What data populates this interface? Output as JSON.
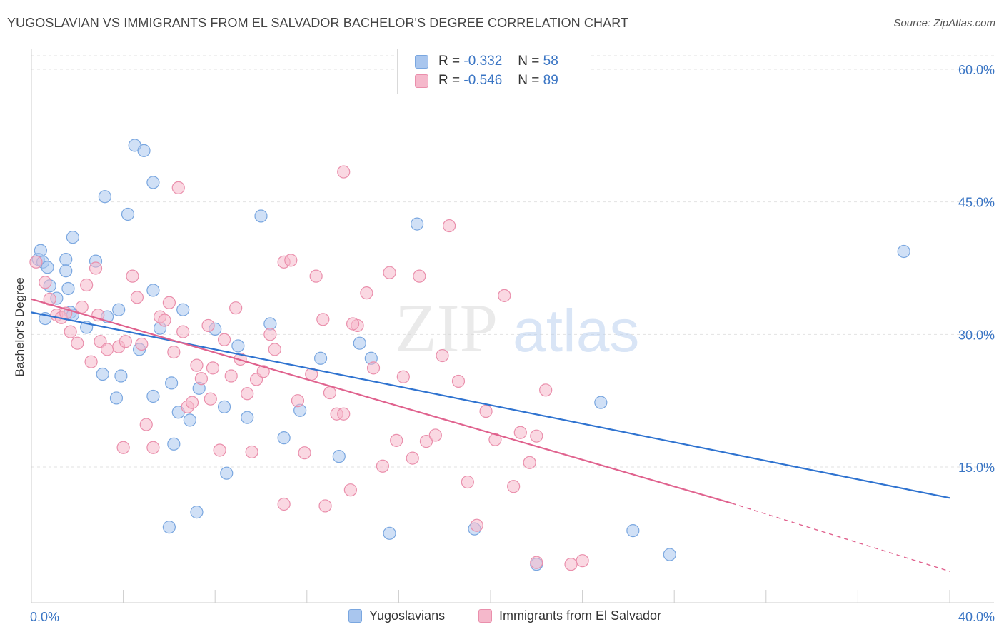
{
  "title": "YUGOSLAVIAN VS IMMIGRANTS FROM EL SALVADOR BACHELOR'S DEGREE CORRELATION CHART",
  "source": "Source: ZipAtlas.com",
  "watermark": {
    "zip": "ZIP",
    "atlas": "atlas"
  },
  "legend": {
    "rows": [
      {
        "r_label": "R =",
        "r_value": "-0.332",
        "n_label": "N =",
        "n_value": "58"
      },
      {
        "r_label": "R =",
        "r_value": "-0.546",
        "n_label": "N =",
        "n_value": "89"
      }
    ]
  },
  "colors": {
    "blue_fill": "#a9c6ee",
    "blue_stroke": "#7aa7e0",
    "blue_line": "#2f73d0",
    "pink_fill": "#f5b8cb",
    "pink_stroke": "#ea8fac",
    "pink_line": "#e0628e",
    "grid": "#e2e2e2",
    "tick_label": "#3a75c4"
  },
  "chart_data": {
    "type": "scatter",
    "xlabel": "",
    "ylabel": "Bachelor's Degree",
    "xlim": [
      0,
      40
    ],
    "ylim": [
      2,
      62
    ],
    "x_tick_labels": [
      {
        "value": 0,
        "label": "0.0%"
      },
      {
        "value": 40,
        "label": "40.0%"
      }
    ],
    "y_tick_labels": [
      {
        "value": 15,
        "label": "15.0%"
      },
      {
        "value": 30,
        "label": "30.0%"
      },
      {
        "value": 45,
        "label": "45.0%"
      },
      {
        "value": 60,
        "label": "60.0%"
      }
    ],
    "grid": true,
    "legend_position": "top-center",
    "series": [
      {
        "name": "Yugoslavians",
        "color": "#a9c6ee",
        "trend": {
          "x": [
            0,
            40
          ],
          "y": [
            32.5,
            11.5
          ]
        },
        "points": [
          [
            0.3,
            38.5
          ],
          [
            0.4,
            39.5
          ],
          [
            0.5,
            38.2
          ],
          [
            0.7,
            37.6
          ],
          [
            0.8,
            35.5
          ],
          [
            0.6,
            31.8
          ],
          [
            1.1,
            34.1
          ],
          [
            1.5,
            38.5
          ],
          [
            1.5,
            37.2
          ],
          [
            1.6,
            35.2
          ],
          [
            1.7,
            32.5
          ],
          [
            1.8,
            32.2
          ],
          [
            2.8,
            38.3
          ],
          [
            3.2,
            45.6
          ],
          [
            3.3,
            32.0
          ],
          [
            3.8,
            32.8
          ],
          [
            4.2,
            43.6
          ],
          [
            4.5,
            51.4
          ],
          [
            4.9,
            50.8
          ],
          [
            5.3,
            47.2
          ],
          [
            5.3,
            35.0
          ],
          [
            5.6,
            30.7
          ],
          [
            4.7,
            28.3
          ],
          [
            2.4,
            30.8
          ],
          [
            3.1,
            25.5
          ],
          [
            3.9,
            25.3
          ],
          [
            3.7,
            22.8
          ],
          [
            5.3,
            23.0
          ],
          [
            6.1,
            24.5
          ],
          [
            6.6,
            32.8
          ],
          [
            6.4,
            21.2
          ],
          [
            6.9,
            20.3
          ],
          [
            7.3,
            23.9
          ],
          [
            8.0,
            30.6
          ],
          [
            8.4,
            21.8
          ],
          [
            9.0,
            28.7
          ],
          [
            9.4,
            20.6
          ],
          [
            10.0,
            43.4
          ],
          [
            10.4,
            31.2
          ],
          [
            11.0,
            18.3
          ],
          [
            11.7,
            21.4
          ],
          [
            12.6,
            27.3
          ],
          [
            13.4,
            16.2
          ],
          [
            14.3,
            29.0
          ],
          [
            14.8,
            27.3
          ],
          [
            15.6,
            7.5
          ],
          [
            16.8,
            42.5
          ],
          [
            19.3,
            8.0
          ],
          [
            22.0,
            4.0
          ],
          [
            24.8,
            22.3
          ],
          [
            26.2,
            7.8
          ],
          [
            27.8,
            5.1
          ],
          [
            7.2,
            9.9
          ],
          [
            6.0,
            8.2
          ],
          [
            1.8,
            41.0
          ],
          [
            38.0,
            39.4
          ],
          [
            6.2,
            17.6
          ],
          [
            8.5,
            14.3
          ]
        ]
      },
      {
        "name": "Immigrants from El Salvador",
        "color": "#f5b8cb",
        "trend": {
          "x": [
            0,
            30.5
          ],
          "y": [
            34.0,
            10.9
          ]
        },
        "trend_dashed": {
          "x": [
            30.5,
            40
          ],
          "y": [
            10.9,
            3.2
          ]
        },
        "points": [
          [
            0.2,
            38.2
          ],
          [
            0.6,
            35.9
          ],
          [
            0.8,
            34.0
          ],
          [
            1.1,
            32.2
          ],
          [
            1.3,
            31.9
          ],
          [
            1.5,
            32.4
          ],
          [
            1.7,
            30.3
          ],
          [
            2.0,
            29.0
          ],
          [
            2.2,
            33.1
          ],
          [
            2.4,
            35.6
          ],
          [
            2.6,
            26.9
          ],
          [
            2.9,
            32.2
          ],
          [
            3.0,
            29.2
          ],
          [
            3.3,
            28.3
          ],
          [
            3.8,
            28.6
          ],
          [
            4.1,
            29.2
          ],
          [
            4.4,
            36.6
          ],
          [
            4.6,
            34.2
          ],
          [
            4.8,
            28.9
          ],
          [
            5.0,
            19.8
          ],
          [
            5.3,
            17.2
          ],
          [
            5.6,
            32.0
          ],
          [
            5.8,
            31.6
          ],
          [
            6.0,
            33.6
          ],
          [
            6.2,
            28.0
          ],
          [
            6.4,
            46.6
          ],
          [
            6.6,
            30.3
          ],
          [
            6.8,
            21.8
          ],
          [
            7.0,
            22.3
          ],
          [
            7.2,
            26.5
          ],
          [
            7.4,
            25.0
          ],
          [
            7.7,
            31.0
          ],
          [
            7.9,
            26.2
          ],
          [
            8.2,
            16.9
          ],
          [
            8.4,
            29.4
          ],
          [
            8.7,
            25.3
          ],
          [
            8.9,
            33.0
          ],
          [
            9.1,
            27.2
          ],
          [
            9.4,
            23.3
          ],
          [
            9.6,
            16.7
          ],
          [
            9.8,
            24.9
          ],
          [
            10.1,
            25.8
          ],
          [
            10.4,
            30.0
          ],
          [
            10.6,
            28.3
          ],
          [
            11.0,
            38.2
          ],
          [
            11.3,
            38.4
          ],
          [
            11.6,
            22.5
          ],
          [
            11.9,
            16.6
          ],
          [
            12.2,
            25.5
          ],
          [
            12.4,
            36.6
          ],
          [
            12.7,
            31.7
          ],
          [
            13.0,
            23.4
          ],
          [
            13.3,
            21.0
          ],
          [
            13.6,
            48.4
          ],
          [
            13.9,
            12.4
          ],
          [
            14.2,
            31.0
          ],
          [
            14.6,
            34.7
          ],
          [
            14.9,
            26.2
          ],
          [
            15.3,
            15.1
          ],
          [
            15.6,
            37.0
          ],
          [
            15.9,
            18.0
          ],
          [
            16.2,
            25.2
          ],
          [
            16.6,
            16.0
          ],
          [
            16.9,
            36.6
          ],
          [
            17.2,
            17.9
          ],
          [
            17.6,
            18.6
          ],
          [
            17.9,
            27.6
          ],
          [
            18.2,
            42.3
          ],
          [
            18.6,
            24.7
          ],
          [
            19.0,
            13.3
          ],
          [
            19.4,
            8.4
          ],
          [
            19.8,
            21.3
          ],
          [
            20.2,
            18.1
          ],
          [
            20.6,
            34.4
          ],
          [
            21.0,
            12.8
          ],
          [
            21.3,
            18.9
          ],
          [
            21.7,
            15.5
          ],
          [
            22.0,
            18.5
          ],
          [
            22.4,
            23.7
          ],
          [
            11.0,
            10.8
          ],
          [
            12.8,
            10.6
          ],
          [
            13.6,
            21.0
          ],
          [
            22.0,
            4.2
          ],
          [
            24.0,
            4.4
          ],
          [
            23.5,
            4.0
          ],
          [
            7.8,
            22.7
          ],
          [
            4.0,
            17.2
          ],
          [
            14.0,
            31.2
          ],
          [
            2.8,
            37.5
          ]
        ]
      }
    ]
  }
}
